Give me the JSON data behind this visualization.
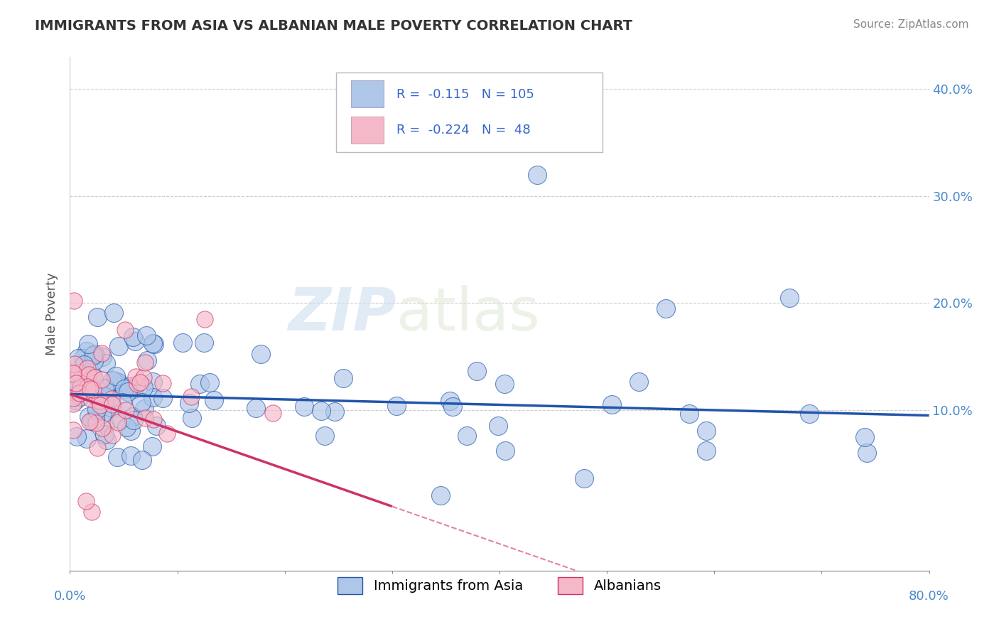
{
  "title": "IMMIGRANTS FROM ASIA VS ALBANIAN MALE POVERTY CORRELATION CHART",
  "source": "Source: ZipAtlas.com",
  "ylabel": "Male Poverty",
  "legend_labels": [
    "Immigrants from Asia",
    "Albanians"
  ],
  "blue_r": -0.115,
  "blue_n": 105,
  "pink_r": -0.224,
  "pink_n": 48,
  "blue_color": "#aec6e8",
  "pink_color": "#f5b8c8",
  "blue_line_color": "#2255aa",
  "pink_line_color": "#cc3366",
  "watermark_zip": "ZIP",
  "watermark_atlas": "atlas",
  "xlim": [
    0.0,
    0.8
  ],
  "ylim": [
    -0.05,
    0.43
  ],
  "xticks": [
    0.0,
    0.1,
    0.2,
    0.3,
    0.4,
    0.5,
    0.6,
    0.7,
    0.8
  ],
  "yticks": [
    0.0,
    0.1,
    0.2,
    0.3,
    0.4
  ],
  "xticklabels_edge": [
    "0.0%",
    "80.0%"
  ],
  "yticklabels": [
    "10.0%",
    "20.0%",
    "30.0%",
    "40.0%"
  ],
  "grid_yticks": [
    0.1,
    0.2,
    0.3,
    0.4
  ]
}
